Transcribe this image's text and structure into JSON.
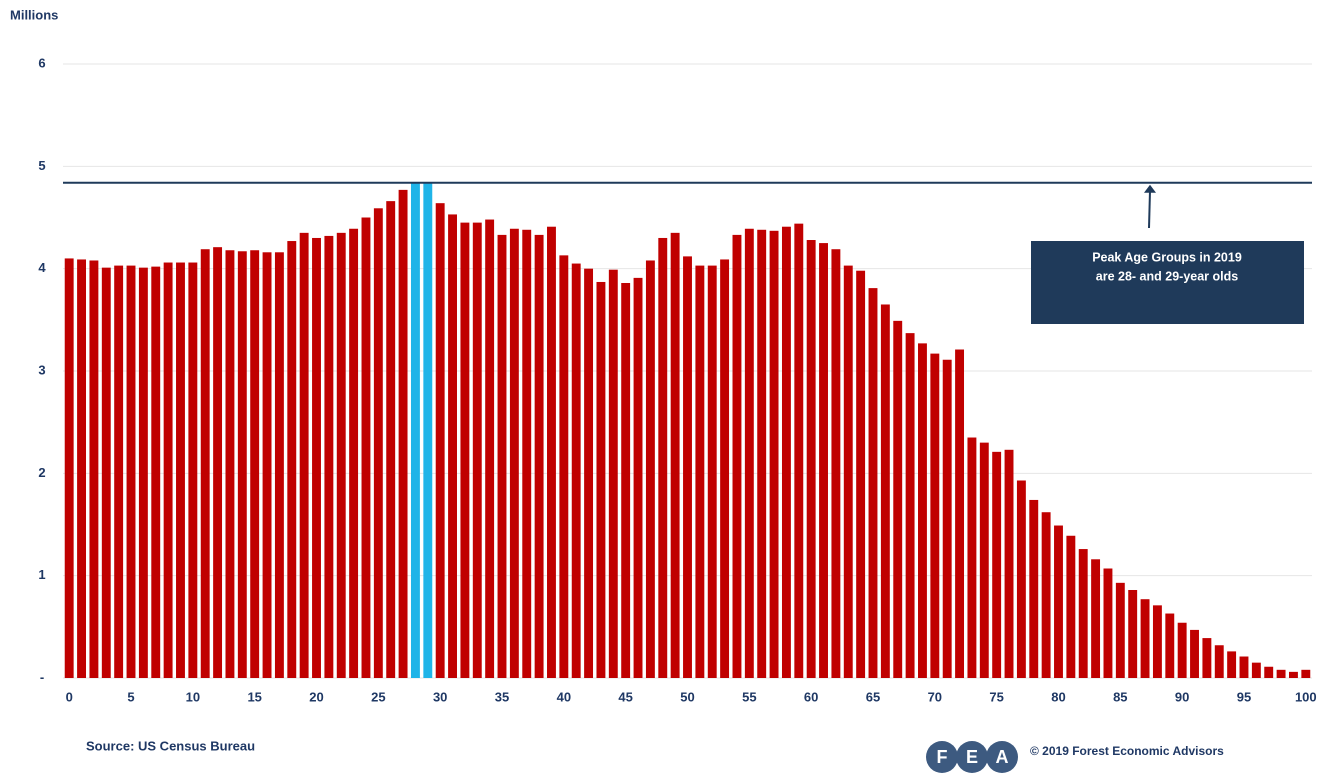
{
  "chart_data": {
    "type": "bar",
    "y_label": "Millions",
    "source": "Source: US Census Bureau",
    "copyright": "© 2019 Forest Economic Advisors",
    "logo": [
      "F",
      "E",
      "A"
    ],
    "annotation": [
      "Peak Age Groups in 2019",
      "are 28- and 29-year olds"
    ],
    "x": [
      0,
      1,
      2,
      3,
      4,
      5,
      6,
      7,
      8,
      9,
      10,
      11,
      12,
      13,
      14,
      15,
      16,
      17,
      18,
      19,
      20,
      21,
      22,
      23,
      24,
      25,
      26,
      27,
      28,
      29,
      30,
      31,
      32,
      33,
      34,
      35,
      36,
      37,
      38,
      39,
      40,
      41,
      42,
      43,
      44,
      45,
      46,
      47,
      48,
      49,
      50,
      51,
      52,
      53,
      54,
      55,
      56,
      57,
      58,
      59,
      60,
      61,
      62,
      63,
      64,
      65,
      66,
      67,
      68,
      69,
      70,
      71,
      72,
      73,
      74,
      75,
      76,
      77,
      78,
      79,
      80,
      81,
      82,
      83,
      84,
      85,
      86,
      87,
      88,
      89,
      90,
      91,
      92,
      93,
      94,
      95,
      96,
      97,
      98,
      99,
      100
    ],
    "values": [
      4.1,
      4.09,
      4.08,
      4.01,
      4.03,
      4.03,
      4.01,
      4.02,
      4.06,
      4.06,
      4.06,
      4.19,
      4.21,
      4.18,
      4.17,
      4.18,
      4.16,
      4.16,
      4.27,
      4.35,
      4.3,
      4.32,
      4.35,
      4.39,
      4.5,
      4.59,
      4.66,
      4.77,
      4.84,
      4.84,
      4.64,
      4.53,
      4.45,
      4.45,
      4.48,
      4.33,
      4.39,
      4.38,
      4.33,
      4.41,
      4.13,
      4.05,
      4.0,
      3.87,
      3.99,
      3.86,
      3.91,
      4.08,
      4.3,
      4.35,
      4.12,
      4.03,
      4.03,
      4.09,
      4.33,
      4.39,
      4.38,
      4.37,
      4.41,
      4.44,
      4.28,
      4.25,
      4.19,
      4.03,
      3.98,
      3.81,
      3.65,
      3.49,
      3.37,
      3.27,
      3.17,
      3.11,
      3.21,
      2.35,
      2.3,
      2.21,
      2.23,
      1.93,
      1.74,
      1.62,
      1.49,
      1.39,
      1.26,
      1.16,
      1.07,
      0.93,
      0.86,
      0.77,
      0.71,
      0.63,
      0.54,
      0.47,
      0.39,
      0.32,
      0.26,
      0.21,
      0.15,
      0.11,
      0.08,
      0.06,
      0.08
    ],
    "color": "#c00000",
    "highlight_x": [
      28,
      29
    ],
    "highlight_color": "#1fb4e8",
    "reference_line": {
      "value": 4.84,
      "color": "#1f3a5a"
    },
    "xlim": [
      -0.5,
      100.5
    ],
    "xticks": [
      0,
      5,
      10,
      15,
      20,
      25,
      30,
      35,
      40,
      45,
      50,
      55,
      60,
      65,
      70,
      75,
      80,
      85,
      90,
      95,
      100
    ],
    "ylim": [
      0,
      6
    ],
    "yticks": [
      {
        "value": 0,
        "label": "-"
      },
      1,
      2,
      3,
      4,
      5,
      6
    ],
    "grid": true
  }
}
